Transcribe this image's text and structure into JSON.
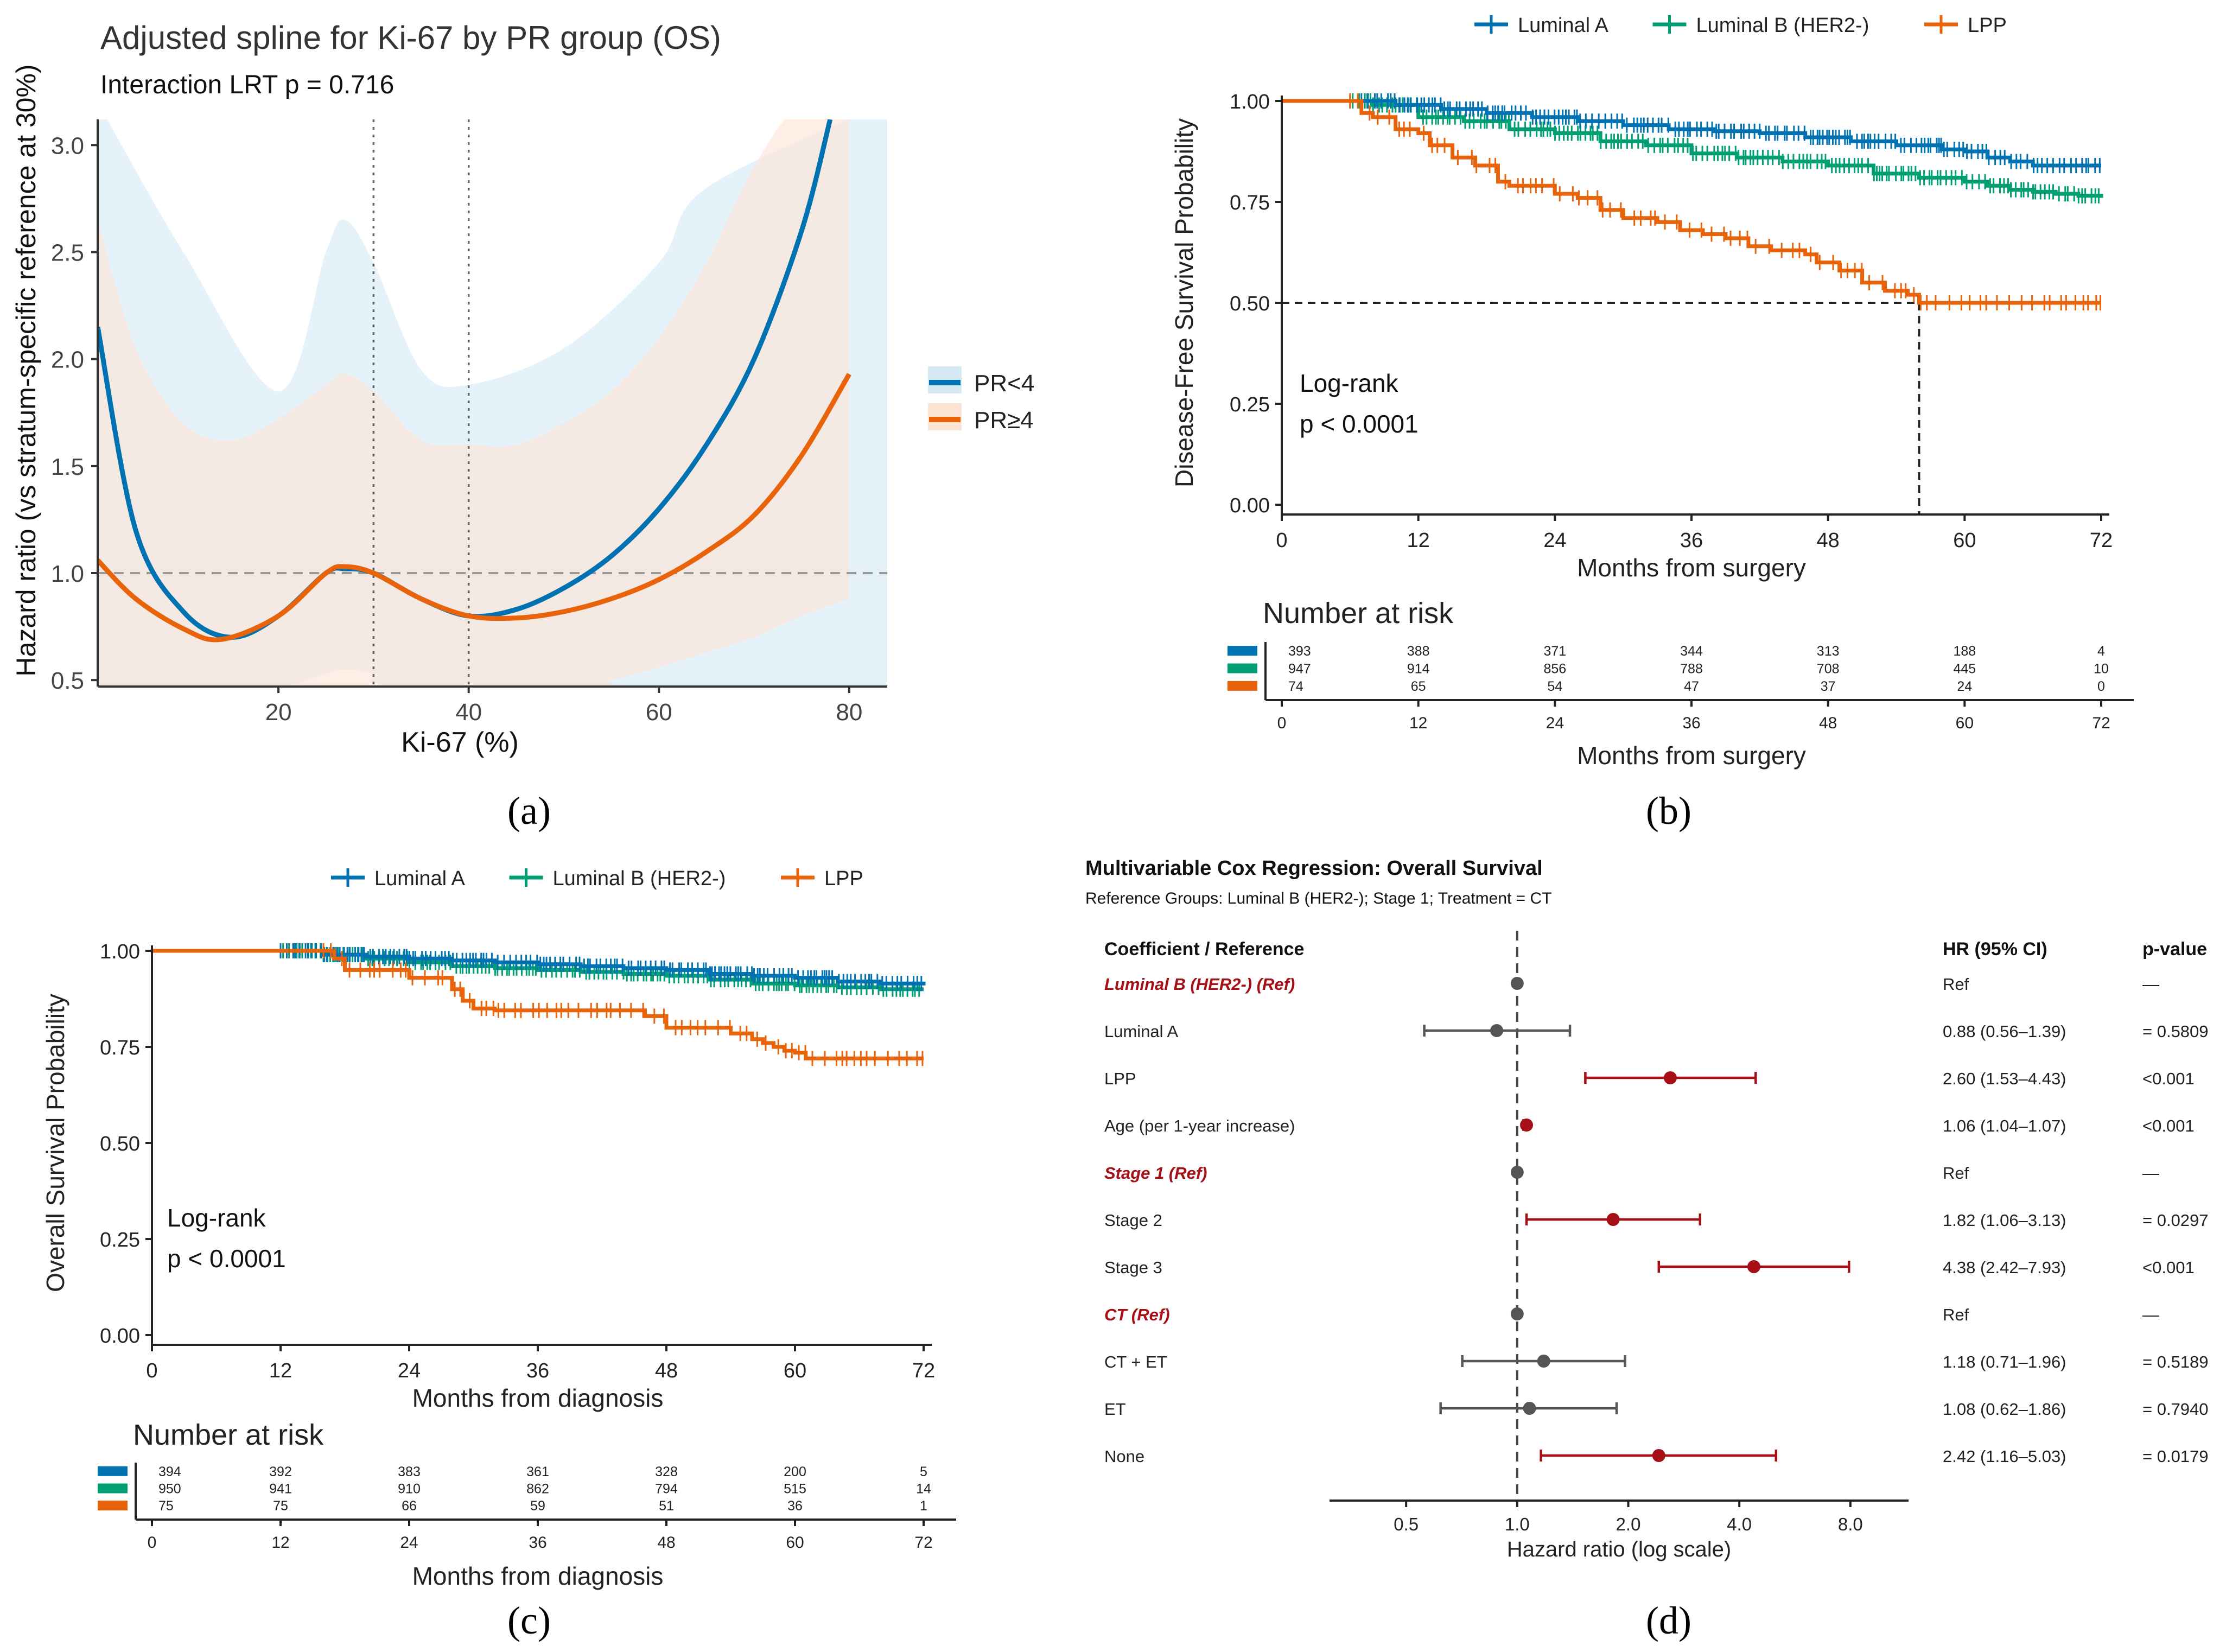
{
  "colors": {
    "blue": "#0072B2",
    "green": "#009E73",
    "orange": "#E8630A",
    "red": "#A50F15",
    "grey": "#555555",
    "ci_blue": "#D6EAF6",
    "ci_orange": "#FDE3D3",
    "ci_overlap": "#E3DCD7"
  },
  "captions": {
    "a": "(a)",
    "b": "(b)",
    "c": "(c)",
    "d": "(d)"
  },
  "chart_data": [
    {
      "id": "a",
      "type": "line",
      "title": "Adjusted spline for Ki-67 by PR group (OS)",
      "subtitle": "Interaction LRT p = 0.716",
      "xlabel": "Ki-67 (%)",
      "ylabel": "Hazard ratio (vs stratum-specific reference at 30%)",
      "xlim": [
        1,
        84
      ],
      "ylim": [
        0.47,
        3.12
      ],
      "xticks": [
        20,
        40,
        60,
        80
      ],
      "xtick_labels": [
        "20",
        "40",
        "60",
        "80"
      ],
      "yticks": [
        0.5,
        1.0,
        1.5,
        2.0,
        2.5,
        3.0
      ],
      "ytick_labels": [
        "0.5",
        "1.0",
        "1.5",
        "2.0",
        "2.5",
        "3.0"
      ],
      "reference_lines": {
        "hline": 1.0,
        "vlines": [
          30,
          40
        ]
      },
      "legend_position": "right",
      "series": [
        {
          "name": "PR<4",
          "color": "#0072B2",
          "x": [
            1,
            5,
            10,
            15,
            20,
            25,
            27,
            30,
            35,
            40,
            45,
            50,
            55,
            60,
            65,
            70,
            75,
            78
          ],
          "y": [
            2.15,
            1.2,
            0.82,
            0.7,
            0.8,
            1.0,
            1.02,
            1.0,
            0.88,
            0.8,
            0.83,
            0.93,
            1.08,
            1.3,
            1.6,
            2.0,
            2.6,
            3.12
          ],
          "ci_upper_x": [
            1,
            10,
            20,
            25,
            27,
            30,
            35,
            40,
            50,
            60,
            65,
            84
          ],
          "ci_upper": [
            3.2,
            2.5,
            1.85,
            2.5,
            2.65,
            2.45,
            1.95,
            1.88,
            2.05,
            2.45,
            2.8,
            3.2
          ],
          "ci_lower_x": [
            1,
            10,
            20,
            25,
            27,
            30,
            35,
            84
          ],
          "ci_lower": [
            0.47,
            0.47,
            0.47,
            0.53,
            0.55,
            0.53,
            0.47,
            0.47
          ]
        },
        {
          "name": "PR≥4",
          "color": "#E8630A",
          "x": [
            1,
            5,
            10,
            14,
            20,
            25,
            27,
            30,
            35,
            40,
            45,
            50,
            55,
            60,
            65,
            70,
            75,
            80
          ],
          "y": [
            1.06,
            0.88,
            0.74,
            0.69,
            0.8,
            1.0,
            1.03,
            1.0,
            0.88,
            0.8,
            0.79,
            0.82,
            0.88,
            0.97,
            1.1,
            1.27,
            1.55,
            1.93
          ],
          "ci_upper_x": [
            1,
            5,
            10,
            15,
            20,
            25,
            27,
            30,
            35,
            40,
            45,
            50,
            55,
            60,
            65,
            70,
            75,
            80
          ],
          "ci_upper": [
            2.65,
            2.05,
            1.7,
            1.62,
            1.72,
            1.88,
            1.93,
            1.85,
            1.62,
            1.6,
            1.6,
            1.7,
            1.85,
            2.1,
            2.45,
            2.9,
            3.2,
            3.2
          ],
          "ci_lower_x": [
            1,
            50,
            55,
            60,
            65,
            70,
            75,
            80
          ],
          "ci_lower": [
            0.47,
            0.47,
            0.5,
            0.56,
            0.63,
            0.7,
            0.8,
            0.88
          ]
        }
      ]
    },
    {
      "id": "b",
      "type": "line",
      "subtype": "kaplan-meier",
      "xlabel": "Months from surgery",
      "ylabel": "Disease-Free Survival Probability",
      "xlim": [
        0,
        72
      ],
      "ylim": [
        0,
        1
      ],
      "xticks": [
        0,
        12,
        24,
        36,
        48,
        60,
        72
      ],
      "xtick_labels": [
        "0",
        "12",
        "24",
        "36",
        "48",
        "60",
        "72"
      ],
      "yticks": [
        0,
        0.25,
        0.5,
        0.75,
        1.0
      ],
      "ytick_labels": [
        "0.00",
        "0.25",
        "0.50",
        "0.75",
        "1.00"
      ],
      "annotation": [
        "Log-rank",
        "p < 0.0001"
      ],
      "median_line": {
        "y": 0.5,
        "x": 56
      },
      "legend_position": "top",
      "series": [
        {
          "name": "Luminal A",
          "color": "#0072B2",
          "x": [
            0,
            7,
            10,
            14,
            18,
            22,
            26,
            30,
            34,
            38,
            42,
            46,
            50,
            54,
            58,
            60,
            62,
            64,
            66,
            68,
            72
          ],
          "y": [
            1,
            1,
            0.99,
            0.98,
            0.97,
            0.96,
            0.95,
            0.94,
            0.93,
            0.925,
            0.92,
            0.91,
            0.9,
            0.89,
            0.88,
            0.875,
            0.86,
            0.85,
            0.84,
            0.84,
            0.84
          ]
        },
        {
          "name": "Luminal B (HER2-)",
          "color": "#009E73",
          "x": [
            0,
            6,
            8,
            12,
            16,
            20,
            24,
            28,
            32,
            36,
            40,
            44,
            48,
            52,
            56,
            60,
            62,
            64,
            66,
            68,
            70,
            72
          ],
          "y": [
            1,
            1,
            0.99,
            0.96,
            0.95,
            0.93,
            0.92,
            0.9,
            0.89,
            0.87,
            0.86,
            0.85,
            0.84,
            0.82,
            0.81,
            0.8,
            0.79,
            0.78,
            0.775,
            0.77,
            0.765,
            0.76
          ]
        },
        {
          "name": "LPP",
          "color": "#E8630A",
          "x": [
            0,
            6,
            7,
            8,
            10,
            12,
            13,
            15,
            17,
            19,
            20,
            22,
            24,
            26,
            28,
            30,
            33,
            35,
            37,
            39,
            41,
            43,
            45,
            46,
            47,
            49,
            51,
            53,
            55,
            56,
            72
          ],
          "y": [
            1,
            1,
            0.97,
            0.96,
            0.93,
            0.92,
            0.89,
            0.86,
            0.84,
            0.8,
            0.79,
            0.79,
            0.77,
            0.76,
            0.73,
            0.71,
            0.7,
            0.68,
            0.67,
            0.66,
            0.64,
            0.63,
            0.63,
            0.62,
            0.6,
            0.58,
            0.55,
            0.53,
            0.52,
            0.5,
            0.5
          ]
        }
      ],
      "risk_table": {
        "title": "Number at risk",
        "xlabel": "Months from surgery",
        "rows": [
          {
            "name": "Luminal A",
            "values": [
              "393",
              "388",
              "371",
              "344",
              "313",
              "188",
              "4"
            ]
          },
          {
            "name": "Luminal B (HER2-)",
            "values": [
              "947",
              "914",
              "856",
              "788",
              "708",
              "445",
              "10"
            ]
          },
          {
            "name": "LPP",
            "values": [
              "74",
              "65",
              "54",
              "47",
              "37",
              "24",
              "0"
            ]
          }
        ]
      }
    },
    {
      "id": "c",
      "type": "line",
      "subtype": "kaplan-meier",
      "xlabel": "Months from diagnosis",
      "ylabel": "Overall Survival Probability",
      "xlim": [
        0,
        72
      ],
      "ylim": [
        0,
        1
      ],
      "xticks": [
        0,
        12,
        24,
        36,
        48,
        60,
        72
      ],
      "xtick_labels": [
        "0",
        "12",
        "24",
        "36",
        "48",
        "60",
        "72"
      ],
      "yticks": [
        0,
        0.25,
        0.5,
        0.75,
        1.0
      ],
      "ytick_labels": [
        "0.00",
        "0.25",
        "0.50",
        "0.75",
        "1.00"
      ],
      "annotation": [
        "Log-rank",
        "p < 0.0001"
      ],
      "legend_position": "top",
      "series": [
        {
          "name": "Luminal A",
          "color": "#0072B2",
          "x": [
            0,
            12,
            16,
            20,
            24,
            28,
            32,
            36,
            40,
            44,
            48,
            52,
            56,
            60,
            64,
            68,
            72
          ],
          "y": [
            1,
            1,
            0.99,
            0.985,
            0.98,
            0.975,
            0.97,
            0.965,
            0.96,
            0.955,
            0.95,
            0.94,
            0.935,
            0.93,
            0.92,
            0.915,
            0.91
          ]
        },
        {
          "name": "Luminal B (HER2-)",
          "color": "#009E73",
          "x": [
            0,
            12,
            16,
            20,
            24,
            28,
            32,
            36,
            40,
            44,
            48,
            52,
            56,
            60,
            64,
            68,
            72
          ],
          "y": [
            1,
            1,
            0.99,
            0.98,
            0.97,
            0.96,
            0.955,
            0.95,
            0.945,
            0.94,
            0.935,
            0.925,
            0.915,
            0.91,
            0.905,
            0.9,
            0.9
          ]
        },
        {
          "name": "LPP",
          "color": "#E8630A",
          "x": [
            0,
            16,
            17,
            18,
            24,
            28,
            29,
            30,
            32,
            45,
            46,
            48,
            53,
            54,
            56,
            57,
            58,
            59,
            60,
            61,
            72
          ],
          "y": [
            1,
            1,
            0.98,
            0.95,
            0.93,
            0.9,
            0.87,
            0.85,
            0.845,
            0.845,
            0.83,
            0.8,
            0.8,
            0.785,
            0.77,
            0.76,
            0.75,
            0.74,
            0.735,
            0.72,
            0.72
          ]
        }
      ],
      "risk_table": {
        "title": "Number at risk",
        "xlabel": "Months from diagnosis",
        "rows": [
          {
            "name": "Luminal A",
            "values": [
              "394",
              "392",
              "383",
              "361",
              "328",
              "200",
              "5"
            ]
          },
          {
            "name": "Luminal B (HER2-)",
            "values": [
              "950",
              "941",
              "910",
              "862",
              "794",
              "515",
              "14"
            ]
          },
          {
            "name": "LPP",
            "values": [
              "75",
              "75",
              "66",
              "59",
              "51",
              "36",
              "1"
            ]
          }
        ]
      }
    },
    {
      "id": "d",
      "type": "forest",
      "title": "Multivariable Cox Regression: Overall Survival",
      "subtitle": "Reference Groups: Luminal B (HER2-); Stage 1; Treatment = CT",
      "xlabel": "Hazard ratio (log scale)",
      "xscale": "log2",
      "xlim": [
        0.31,
        11.5
      ],
      "xticks": [
        0.5,
        1.0,
        2.0,
        4.0,
        8.0
      ],
      "xtick_labels": [
        "0.5",
        "1.0",
        "2.0",
        "4.0",
        "8.0"
      ],
      "reference_line": 1.0,
      "headers": {
        "term": "Coefficient / Reference",
        "hr": "HR (95% CI)",
        "p": "p-value"
      },
      "rows": [
        {
          "label": "Luminal B (HER2-) (Ref)",
          "ref": true,
          "hr": 1.0,
          "lo": null,
          "hi": null,
          "hr_text": "Ref",
          "p_text": "—",
          "sig": false
        },
        {
          "label": "Luminal A",
          "ref": false,
          "hr": 0.88,
          "lo": 0.56,
          "hi": 1.39,
          "hr_text": "0.88 (0.56–1.39)",
          "p_text": "= 0.5809",
          "sig": false
        },
        {
          "label": "LPP",
          "ref": false,
          "hr": 2.6,
          "lo": 1.53,
          "hi": 4.43,
          "hr_text": "2.60 (1.53–4.43)",
          "p_text": "<0.001",
          "sig": true
        },
        {
          "label": "Age (per 1-year increase)",
          "ref": false,
          "hr": 1.06,
          "lo": 1.04,
          "hi": 1.07,
          "hr_text": "1.06 (1.04–1.07)",
          "p_text": "<0.001",
          "sig": true
        },
        {
          "label": "Stage 1 (Ref)",
          "ref": true,
          "hr": 1.0,
          "lo": null,
          "hi": null,
          "hr_text": "Ref",
          "p_text": "—",
          "sig": false
        },
        {
          "label": "Stage 2",
          "ref": false,
          "hr": 1.82,
          "lo": 1.06,
          "hi": 3.13,
          "hr_text": "1.82 (1.06–3.13)",
          "p_text": "= 0.0297",
          "sig": true
        },
        {
          "label": "Stage 3",
          "ref": false,
          "hr": 4.38,
          "lo": 2.42,
          "hi": 7.93,
          "hr_text": "4.38 (2.42–7.93)",
          "p_text": "<0.001",
          "sig": true
        },
        {
          "label": "CT (Ref)",
          "ref": true,
          "hr": 1.0,
          "lo": null,
          "hi": null,
          "hr_text": "Ref",
          "p_text": "—",
          "sig": false
        },
        {
          "label": "CT + ET",
          "ref": false,
          "hr": 1.18,
          "lo": 0.71,
          "hi": 1.96,
          "hr_text": "1.18 (0.71–1.96)",
          "p_text": "= 0.5189",
          "sig": false
        },
        {
          "label": "ET",
          "ref": false,
          "hr": 1.08,
          "lo": 0.62,
          "hi": 1.86,
          "hr_text": "1.08 (0.62–1.86)",
          "p_text": "= 0.7940",
          "sig": false
        },
        {
          "label": "None",
          "ref": false,
          "hr": 2.42,
          "lo": 1.16,
          "hi": 5.03,
          "hr_text": "2.42 (1.16–5.03)",
          "p_text": "= 0.0179",
          "sig": true
        }
      ]
    }
  ]
}
